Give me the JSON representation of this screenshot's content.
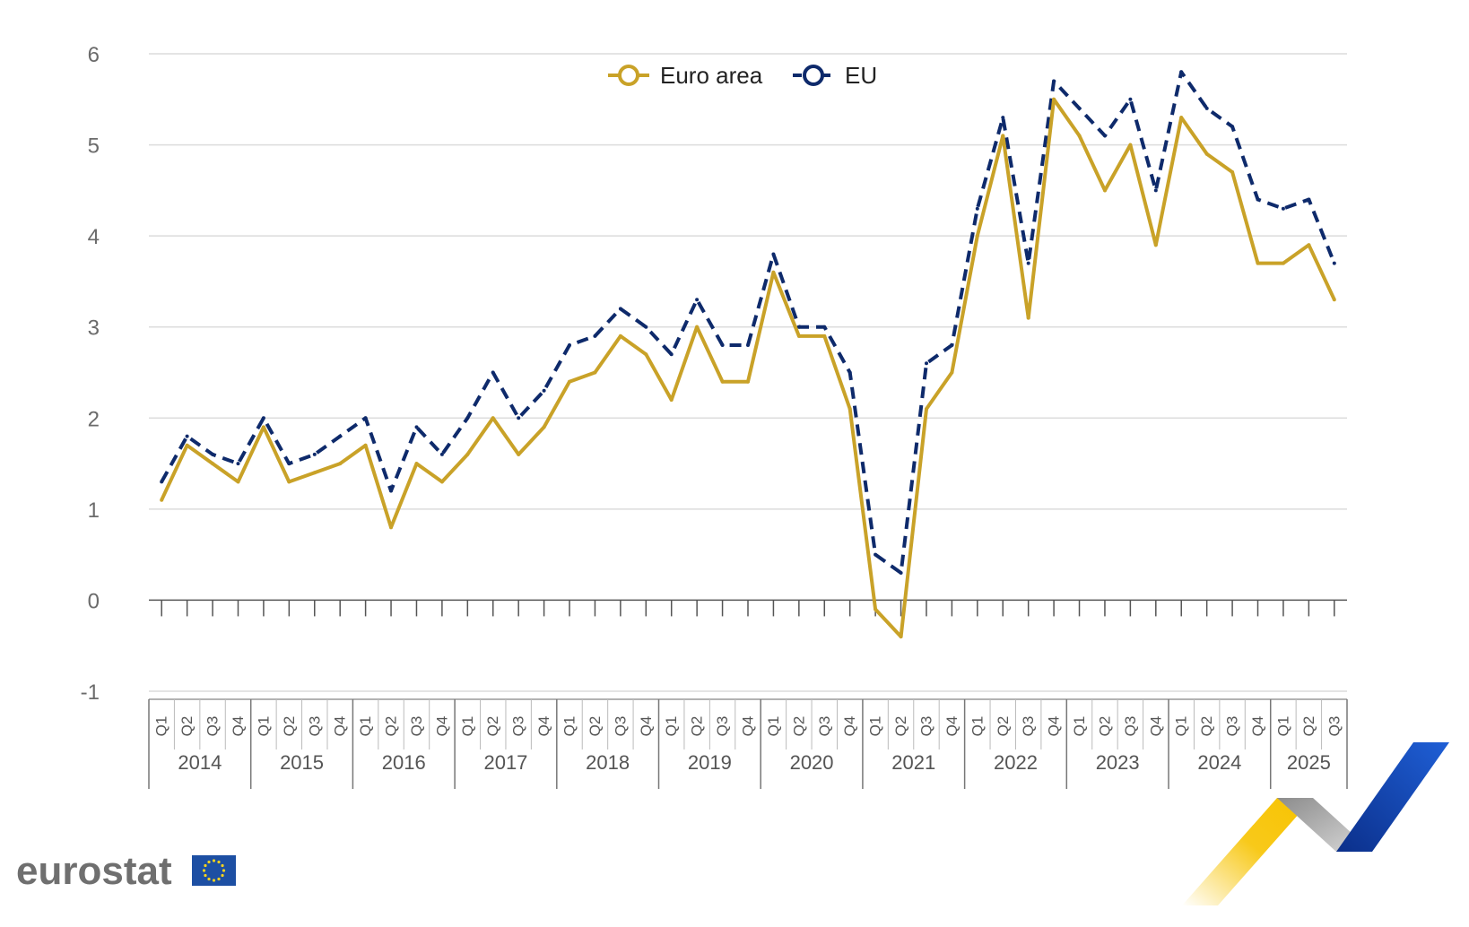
{
  "chart_data": {
    "type": "line",
    "title": "",
    "xlabel": "",
    "ylabel": "",
    "ylim": [
      -1,
      6
    ],
    "yticks": [
      "6",
      "5",
      "4",
      "3",
      "2",
      "1",
      "0",
      "-1"
    ],
    "grid": true,
    "legend_position": "top-center",
    "years": [
      "2014",
      "2015",
      "2016",
      "2017",
      "2018",
      "2019",
      "2020",
      "2021",
      "2022",
      "2023",
      "2024",
      "2025"
    ],
    "quarters_per_year": [
      [
        "Q1",
        "Q2",
        "Q3",
        "Q4"
      ],
      [
        "Q1",
        "Q2",
        "Q3",
        "Q4"
      ],
      [
        "Q1",
        "Q2",
        "Q3",
        "Q4"
      ],
      [
        "Q1",
        "Q2",
        "Q3",
        "Q4"
      ],
      [
        "Q1",
        "Q2",
        "Q3",
        "Q4"
      ],
      [
        "Q1",
        "Q2",
        "Q3",
        "Q4"
      ],
      [
        "Q1",
        "Q2",
        "Q3",
        "Q4"
      ],
      [
        "Q1",
        "Q2",
        "Q3",
        "Q4"
      ],
      [
        "Q1",
        "Q2",
        "Q3",
        "Q4"
      ],
      [
        "Q1",
        "Q2",
        "Q3",
        "Q4"
      ],
      [
        "Q1",
        "Q2",
        "Q3",
        "Q4"
      ],
      [
        "Q1",
        "Q2",
        "Q3"
      ]
    ],
    "series": [
      {
        "name": "Euro area",
        "color": "#c9a228",
        "dash": "solid",
        "values": [
          1.1,
          1.7,
          1.5,
          1.3,
          1.9,
          1.3,
          1.4,
          1.5,
          1.7,
          0.8,
          1.5,
          1.3,
          1.6,
          2.0,
          1.6,
          1.9,
          2.4,
          2.5,
          2.9,
          2.7,
          2.2,
          3.0,
          2.4,
          2.4,
          3.6,
          2.9,
          2.9,
          2.1,
          -0.1,
          -0.4,
          2.1,
          2.5,
          4.0,
          5.1,
          3.1,
          5.5,
          5.1,
          4.5,
          5.0,
          3.9,
          5.3,
          4.9,
          4.7,
          3.7,
          3.7,
          3.9,
          3.3
        ]
      },
      {
        "name": "EU",
        "color": "#0e2a6b",
        "dash": "dashed",
        "values": [
          1.3,
          1.8,
          1.6,
          1.5,
          2.0,
          1.5,
          1.6,
          1.8,
          2.0,
          1.2,
          1.9,
          1.6,
          2.0,
          2.5,
          2.0,
          2.3,
          2.8,
          2.9,
          3.2,
          3.0,
          2.7,
          3.3,
          2.8,
          2.8,
          3.8,
          3.0,
          3.0,
          2.5,
          0.5,
          0.3,
          2.6,
          2.8,
          4.3,
          5.3,
          3.7,
          5.7,
          5.4,
          5.1,
          5.5,
          4.5,
          5.8,
          5.4,
          5.2,
          4.4,
          4.3,
          4.4,
          3.7
        ]
      }
    ]
  },
  "branding": {
    "logo_text": "eurostat",
    "flag_color": "#1d4fa3",
    "star_color": "#f4d21f"
  }
}
